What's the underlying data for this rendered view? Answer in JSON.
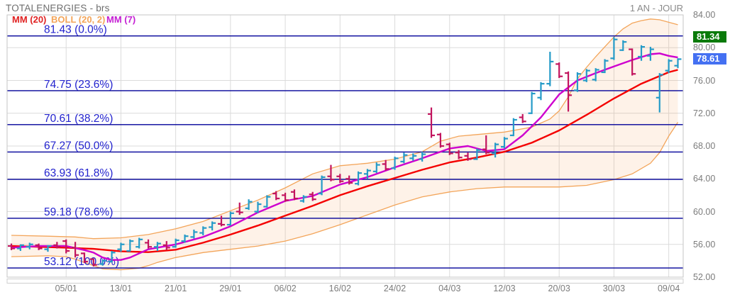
{
  "header": {
    "title": "TOTALENERGIES - brs",
    "period": "1 AN - JOUR"
  },
  "legend": [
    {
      "label": "MM (20)",
      "color": "#E02222"
    },
    {
      "label": "BOLL (20, 2)",
      "color": "#F3A55A"
    },
    {
      "label": "MM (7)",
      "color": "#C41FD3"
    }
  ],
  "colors": {
    "up_bar": "#259BC8",
    "down_bar": "#C2155E",
    "mm20": "#F40000",
    "mm7": "#CE00CE",
    "boll_line": "#F3A55A",
    "band_fill": "rgba(245,166,90,0.14)",
    "fib_line": "#000099",
    "fib_text": "#2323CE",
    "grid": "#DBDBDB",
    "border": "#C6C6C6",
    "axis_text": "#7B7B7B",
    "badge_text": "#FFFFFF"
  },
  "chart_data": {
    "type": "ohlc-bar-with-overlays",
    "title": "TOTALENERGIES - brs",
    "timeframe": "1 AN - JOUR",
    "x_axis": {
      "labels": [
        "05/01",
        "13/01",
        "21/01",
        "29/01",
        "06/02",
        "16/02",
        "24/02",
        "04/03",
        "12/03",
        "20/03",
        "30/03",
        "09/04"
      ],
      "label_bar_indices": [
        6,
        12,
        18,
        24,
        30,
        36,
        42,
        48,
        54,
        60,
        66,
        72
      ]
    },
    "y_axis": {
      "ticks": [
        84,
        80,
        76,
        72,
        68,
        64,
        60,
        56,
        52
      ],
      "tick_labels": [
        "84.00",
        "80.00",
        "76.00",
        "72.00",
        "68.00",
        "64.00",
        "60.00",
        "56.00",
        "52.00"
      ],
      "min": 52,
      "max": 84,
      "grid": true
    },
    "fib_levels": [
      {
        "price": 81.43,
        "pct": "0.0%",
        "label": "81.43  (0.0%)"
      },
      {
        "price": 74.75,
        "pct": "23.6%",
        "label": "74.75  (23.6%)"
      },
      {
        "price": 70.61,
        "pct": "38.2%",
        "label": "70.61  (38.2%)"
      },
      {
        "price": 67.27,
        "pct": "50.0%",
        "label": "67.27  (50.0%)"
      },
      {
        "price": 63.93,
        "pct": "61.8%",
        "label": "63.93  (61.8%)"
      },
      {
        "price": 59.18,
        "pct": "78.6%",
        "label": "59.18  (78.6%)"
      },
      {
        "price": 53.12,
        "pct": "100.0%",
        "label": "53.12  (100.0%)"
      }
    ],
    "price_markers": [
      {
        "text": "81.34",
        "value": 81.34,
        "bg": "#0A7A0A",
        "name": "price-badge-high"
      },
      {
        "text": "78.61",
        "value": 78.61,
        "bg": "#4470F2",
        "name": "price-badge-last"
      }
    ],
    "bars": [
      [
        55.8,
        56.1,
        55.3,
        55.5
      ],
      [
        55.5,
        56.0,
        55.2,
        55.9
      ],
      [
        55.7,
        56.2,
        55.4,
        56.0
      ],
      [
        55.9,
        56.1,
        55.3,
        55.5
      ],
      [
        55.4,
        55.9,
        55.1,
        55.8
      ],
      [
        55.9,
        56.3,
        55.5,
        55.7
      ],
      [
        56.4,
        56.6,
        54.9,
        55.2
      ],
      [
        55.6,
        56.3,
        54.4,
        54.7
      ],
      [
        54.9,
        55.0,
        53.7,
        53.9
      ],
      [
        54.2,
        54.3,
        53.3,
        53.5
      ],
      [
        53.6,
        54.2,
        53.4,
        54.0
      ],
      [
        53.9,
        55.2,
        53.8,
        55.0
      ],
      [
        55.4,
        56.2,
        55.1,
        56.0
      ],
      [
        55.2,
        56.6,
        55.1,
        56.4
      ],
      [
        55.7,
        56.8,
        55.5,
        56.6
      ],
      [
        56.2,
        56.6,
        55.5,
        55.7
      ],
      [
        55.7,
        56.3,
        55.2,
        56.1
      ],
      [
        55.9,
        56.4,
        55.3,
        55.6
      ],
      [
        55.7,
        56.7,
        55.6,
        56.5
      ],
      [
        56.4,
        57.2,
        56.2,
        57.0
      ],
      [
        56.9,
        57.8,
        56.7,
        57.5
      ],
      [
        57.4,
        58.2,
        57.1,
        58.0
      ],
      [
        58.1,
        58.8,
        57.7,
        58.6
      ],
      [
        58.5,
        59.5,
        58.2,
        58.4
      ],
      [
        58.4,
        60.0,
        58.3,
        59.8
      ],
      [
        60.0,
        61.1,
        59.6,
        59.9
      ],
      [
        60.4,
        61.5,
        60.2,
        61.2
      ],
      [
        60.0,
        61.2,
        59.8,
        60.9
      ],
      [
        60.6,
        62.0,
        60.5,
        61.8
      ],
      [
        62.2,
        62.5,
        61.4,
        61.6
      ],
      [
        62.0,
        62.3,
        61.2,
        61.4
      ],
      [
        62.4,
        62.7,
        61.4,
        61.6
      ],
      [
        61.3,
        62.0,
        61.1,
        61.8
      ],
      [
        62.1,
        62.4,
        61.3,
        61.5
      ],
      [
        62.2,
        64.4,
        62.0,
        64.2
      ],
      [
        64.3,
        65.7,
        63.7,
        63.9
      ],
      [
        64.3,
        64.6,
        63.5,
        63.7
      ],
      [
        64.0,
        64.4,
        63.3,
        63.5
      ],
      [
        63.4,
        64.9,
        63.2,
        64.7
      ],
      [
        64.6,
        65.2,
        64.0,
        65.0
      ],
      [
        64.9,
        66.0,
        64.7,
        65.7
      ],
      [
        65.8,
        66.3,
        65.0,
        65.2
      ],
      [
        65.3,
        66.7,
        65.1,
        66.5
      ],
      [
        66.1,
        67.2,
        65.9,
        66.9
      ],
      [
        66.5,
        67.1,
        66.2,
        66.8
      ],
      [
        66.4,
        67.3,
        66.1,
        67.0
      ],
      [
        71.9,
        72.7,
        69.0,
        69.3
      ],
      [
        69.4,
        69.6,
        67.8,
        68.0
      ],
      [
        68.2,
        68.4,
        66.9,
        67.1
      ],
      [
        67.2,
        67.5,
        66.4,
        66.6
      ],
      [
        66.8,
        67.2,
        66.2,
        66.4
      ],
      [
        66.4,
        67.7,
        66.3,
        67.5
      ],
      [
        67.6,
        69.3,
        67.0,
        67.2
      ],
      [
        67.1,
        68.4,
        66.6,
        68.2
      ],
      [
        67.9,
        69.1,
        67.7,
        68.9
      ],
      [
        69.3,
        71.4,
        69.2,
        71.2
      ],
      [
        71.5,
        71.9,
        70.8,
        71.0
      ],
      [
        72.0,
        74.6,
        71.9,
        74.4
      ],
      [
        73.9,
        75.8,
        73.6,
        75.6
      ],
      [
        75.6,
        79.5,
        75.3,
        78.3
      ],
      [
        78.0,
        78.2,
        76.3,
        76.5
      ],
      [
        76.9,
        77.1,
        72.2,
        74.2
      ],
      [
        74.8,
        77.0,
        74.6,
        76.8
      ],
      [
        76.0,
        77.4,
        75.8,
        77.2
      ],
      [
        76.1,
        77.5,
        75.9,
        77.3
      ],
      [
        77.0,
        78.6,
        76.9,
        78.4
      ],
      [
        78.7,
        81.3,
        78.5,
        81.0
      ],
      [
        79.7,
        80.9,
        79.6,
        80.7
      ],
      [
        79.8,
        79.9,
        76.6,
        76.8
      ],
      [
        78.9,
        80.3,
        78.4,
        80.1
      ],
      [
        79.0,
        80.1,
        78.4,
        79.8
      ],
      [
        73.9,
        76.9,
        72.1,
        76.7
      ],
      [
        77.2,
        78.6,
        76.9,
        78.4
      ],
      [
        77.8,
        78.7,
        77.5,
        78.6
      ]
    ],
    "overlays": {
      "mm20": [
        [
          0,
          55.8
        ],
        [
          3,
          55.7
        ],
        [
          6,
          55.6
        ],
        [
          9,
          55.45
        ],
        [
          12,
          55.15
        ],
        [
          15,
          55.05
        ],
        [
          18,
          55.35
        ],
        [
          21,
          56.2
        ],
        [
          24,
          57.2
        ],
        [
          27,
          58.3
        ],
        [
          30,
          59.5
        ],
        [
          33,
          60.7
        ],
        [
          36,
          62.0
        ],
        [
          39,
          63.1
        ],
        [
          42,
          64.1
        ],
        [
          45,
          65.1
        ],
        [
          48,
          66.0
        ],
        [
          51,
          66.6
        ],
        [
          54,
          67.3
        ],
        [
          57,
          68.4
        ],
        [
          60,
          69.9
        ],
        [
          63,
          71.8
        ],
        [
          66,
          73.8
        ],
        [
          69,
          75.6
        ],
        [
          72,
          77.0
        ],
        [
          73,
          77.3
        ]
      ],
      "mm7": [
        [
          0,
          55.6
        ],
        [
          3,
          55.8
        ],
        [
          6,
          55.8
        ],
        [
          8,
          55.3
        ],
        [
          9,
          55.0
        ],
        [
          10,
          54.4
        ],
        [
          11,
          54.1
        ],
        [
          12,
          54.1
        ],
        [
          13,
          54.4
        ],
        [
          15,
          55.4
        ],
        [
          18,
          56.0
        ],
        [
          21,
          56.9
        ],
        [
          24,
          58.2
        ],
        [
          27,
          59.9
        ],
        [
          30,
          61.3
        ],
        [
          33,
          61.9
        ],
        [
          36,
          63.3
        ],
        [
          39,
          64.2
        ],
        [
          42,
          65.4
        ],
        [
          45,
          66.5
        ],
        [
          48,
          67.7
        ],
        [
          50,
          68.0
        ],
        [
          52,
          67.4
        ],
        [
          54,
          67.6
        ],
        [
          56,
          69.3
        ],
        [
          58,
          71.5
        ],
        [
          60,
          74.3
        ],
        [
          62,
          76.0
        ],
        [
          64,
          76.9
        ],
        [
          66,
          77.7
        ],
        [
          68,
          78.5
        ],
        [
          70,
          79.2
        ],
        [
          71,
          79.3
        ],
        [
          72,
          79.0
        ],
        [
          73,
          78.8
        ]
      ],
      "boll_upper": [
        [
          0,
          57.1
        ],
        [
          4,
          57.0
        ],
        [
          7,
          56.9
        ],
        [
          9,
          56.7
        ],
        [
          12,
          56.8
        ],
        [
          15,
          57.2
        ],
        [
          18,
          57.9
        ],
        [
          21,
          58.8
        ],
        [
          24,
          60.1
        ],
        [
          27,
          61.4
        ],
        [
          30,
          62.9
        ],
        [
          33,
          64.6
        ],
        [
          36,
          65.6
        ],
        [
          39,
          65.9
        ],
        [
          42,
          66.4
        ],
        [
          45,
          67.3
        ],
        [
          47,
          68.6
        ],
        [
          49,
          69.2
        ],
        [
          51,
          69.4
        ],
        [
          54,
          69.7
        ],
        [
          57,
          70.3
        ],
        [
          59,
          71.3
        ],
        [
          60,
          72.3
        ],
        [
          61,
          74.0
        ],
        [
          62,
          76.2
        ],
        [
          63,
          77.6
        ],
        [
          64,
          78.9
        ],
        [
          65,
          80.1
        ],
        [
          66,
          81.3
        ],
        [
          67,
          82.3
        ],
        [
          68,
          83.0
        ],
        [
          69,
          83.3
        ],
        [
          70,
          83.5
        ],
        [
          71,
          83.4
        ],
        [
          72,
          83.1
        ],
        [
          73,
          82.8
        ]
      ],
      "boll_lower": [
        [
          0,
          54.5
        ],
        [
          4,
          54.6
        ],
        [
          6,
          54.5
        ],
        [
          7,
          54.2
        ],
        [
          9,
          53.4
        ],
        [
          10,
          53.0
        ],
        [
          12,
          52.9
        ],
        [
          14,
          53.1
        ],
        [
          15,
          53.4
        ],
        [
          16,
          53.8
        ],
        [
          18,
          54.4
        ],
        [
          21,
          55.0
        ],
        [
          24,
          55.4
        ],
        [
          27,
          55.8
        ],
        [
          30,
          56.4
        ],
        [
          33,
          57.3
        ],
        [
          36,
          58.4
        ],
        [
          39,
          59.6
        ],
        [
          42,
          60.8
        ],
        [
          45,
          61.8
        ],
        [
          48,
          62.4
        ],
        [
          51,
          62.8
        ],
        [
          54,
          63.0
        ],
        [
          57,
          63.0
        ],
        [
          60,
          63.0
        ],
        [
          63,
          63.2
        ],
        [
          66,
          63.9
        ],
        [
          68,
          64.6
        ],
        [
          70,
          65.9
        ],
        [
          71,
          67.2
        ],
        [
          72,
          69.2
        ],
        [
          73,
          70.9
        ]
      ]
    }
  }
}
